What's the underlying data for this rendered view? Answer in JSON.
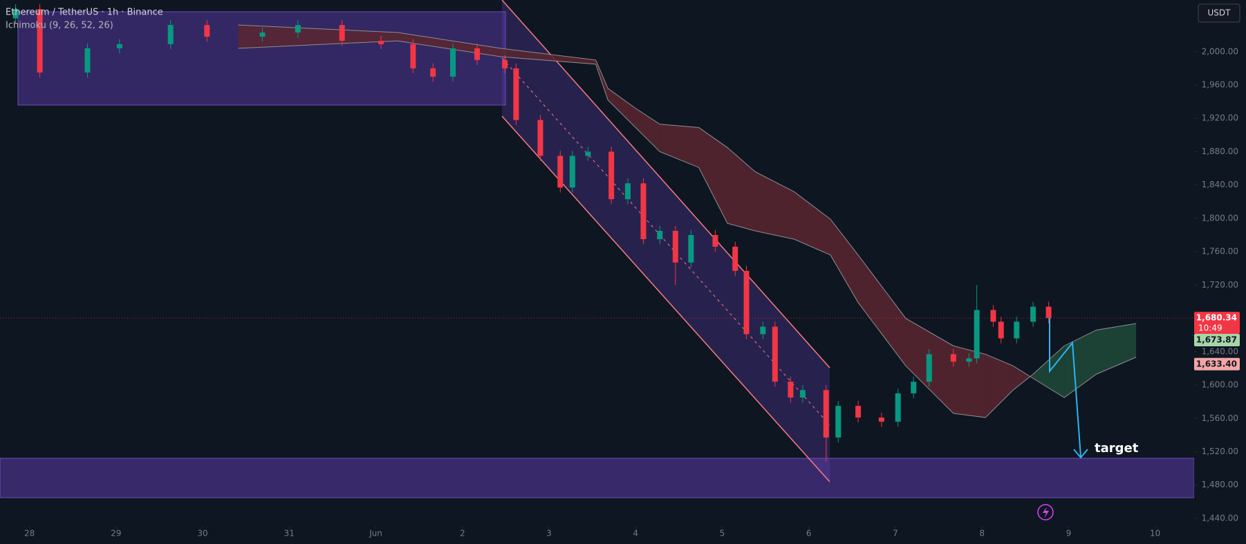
{
  "chart_data": {
    "type": "candlestick",
    "title": "Ethereum / TetherUS · 1h · Binance",
    "indicator": "Ichimoku (9, 26, 52, 26)",
    "currency_button": "USDT",
    "annotation": "target",
    "countdown": "10:49",
    "up_color": "#089981",
    "down_color": "#f23645",
    "x": [
      -0.16,
      0.12,
      0.67,
      1.04,
      1.63,
      2.05,
      2.69,
      3.1,
      3.61,
      4.06,
      4.43,
      4.66,
      4.89,
      5.17,
      5.49,
      5.62,
      5.9,
      6.13,
      6.27,
      6.45,
      6.72,
      6.91,
      7.09,
      7.28,
      7.46,
      7.64,
      7.92,
      8.15,
      8.28,
      8.47,
      8.61,
      8.79,
      8.93,
      9.2,
      9.34,
      9.57,
      9.84,
      10.03,
      10.21,
      10.39,
      10.67,
      10.85,
      10.94,
      11.13,
      11.22,
      11.4,
      11.59,
      11.77
    ],
    "open": [
      2040,
      2051,
      1975,
      2004,
      2009,
      2032,
      2018,
      2023,
      2032,
      2013,
      2009,
      1980,
      1970,
      2004,
      1990,
      1980,
      1918,
      1875,
      1837,
      1875,
      1880,
      1823,
      1842,
      1775,
      1785,
      1747,
      1780,
      1766,
      1737,
      1661,
      1670,
      1604,
      1585,
      1594,
      1537,
      1575,
      1561,
      1556,
      1590,
      1604,
      1637,
      1628,
      1632,
      1690,
      1676,
      1656,
      1676,
      1694
    ],
    "high": [
      2057,
      2057,
      2010,
      2015,
      2038,
      2038,
      2029,
      2038,
      2038,
      2019,
      2015,
      1986,
      2010,
      2010,
      1996,
      1986,
      1924,
      1881,
      1881,
      1886,
      1886,
      1848,
      1848,
      1791,
      1791,
      1786,
      1786,
      1772,
      1743,
      1676,
      1676,
      1610,
      1600,
      1600,
      1581,
      1581,
      1567,
      1596,
      1610,
      1643,
      1643,
      1638,
      1720,
      1696,
      1682,
      1682,
      1700,
      1700
    ],
    "low": [
      2034,
      1969,
      1969,
      1998,
      2003,
      2012,
      2012,
      2017,
      2007,
      2003,
      1974,
      1964,
      1964,
      1984,
      1974,
      1912,
      1869,
      1831,
      1831,
      1869,
      1817,
      1817,
      1769,
      1769,
      1720,
      1741,
      1760,
      1731,
      1655,
      1655,
      1598,
      1579,
      1579,
      1508,
      1531,
      1555,
      1550,
      1550,
      1584,
      1598,
      1622,
      1622,
      1626,
      1670,
      1650,
      1650,
      1670,
      1674
    ],
    "close": [
      2051,
      1975,
      2004,
      2009,
      2032,
      2018,
      2023,
      2032,
      2013,
      2009,
      1980,
      1970,
      2004,
      1990,
      1980,
      1918,
      1875,
      1837,
      1875,
      1880,
      1823,
      1842,
      1775,
      1785,
      1747,
      1780,
      1766,
      1737,
      1661,
      1670,
      1604,
      1585,
      1594,
      1537,
      1575,
      1561,
      1556,
      1590,
      1604,
      1637,
      1628,
      1632,
      1690,
      1676,
      1656,
      1676,
      1694,
      1680.34
    ],
    "cloud": {
      "x": [
        2.41,
        4.25,
        5.44,
        6.54,
        6.68,
        7.0,
        7.28,
        7.73,
        8.06,
        8.38,
        8.83,
        9.25,
        9.57,
        10.12,
        10.67,
        11.04,
        11.36,
        11.59,
        11.95,
        12.32,
        12.78
      ],
      "span_a": [
        2004,
        2013,
        1994,
        1985,
        1942,
        1909,
        1880,
        1861,
        1794,
        1785,
        1775,
        1756,
        1699,
        1623,
        1566,
        1561,
        1594,
        1613,
        1647,
        1666,
        1673.87
      ],
      "span_b": [
        2032,
        2023,
        2004,
        1990,
        1956,
        1932,
        1913,
        1909,
        1885,
        1856,
        1832,
        1799,
        1756,
        1680,
        1647,
        1637,
        1623,
        1608,
        1585,
        1613,
        1633.4
      ],
      "bull_color": "#1e4a3a",
      "bear_color": "#5a2630"
    },
    "price_labels": [
      {
        "value": 1680.34,
        "label": "1,680.34",
        "color": "#f23645"
      },
      {
        "value": 1673.87,
        "label": "1,673.87",
        "color": "#a5d6a7"
      },
      {
        "value": 1633.4,
        "label": "1,633.40",
        "color": "#f4a6a6"
      }
    ],
    "xlim": [
      -0.34,
      13.45
    ],
    "ylim": [
      1430,
      2062
    ],
    "xticks": [
      {
        "value": 0,
        "label": "28"
      },
      {
        "value": 1,
        "label": "29"
      },
      {
        "value": 2,
        "label": "30"
      },
      {
        "value": 3,
        "label": "31"
      },
      {
        "value": 4,
        "label": "Jun"
      },
      {
        "value": 5,
        "label": "2"
      },
      {
        "value": 6,
        "label": "3"
      },
      {
        "value": 7,
        "label": "4"
      },
      {
        "value": 8,
        "label": "5"
      },
      {
        "value": 9,
        "label": "6"
      },
      {
        "value": 10,
        "label": "7"
      },
      {
        "value": 11,
        "label": "8"
      },
      {
        "value": 12,
        "label": "9"
      },
      {
        "value": 13,
        "label": "10"
      }
    ],
    "yticks": [
      {
        "value": 2000,
        "label": "2,000.00"
      },
      {
        "value": 1960,
        "label": "1,960.00"
      },
      {
        "value": 1920,
        "label": "1,920.00"
      },
      {
        "value": 1880,
        "label": "1,880.00"
      },
      {
        "value": 1840,
        "label": "1,840.00"
      },
      {
        "value": 1800,
        "label": "1,800.00"
      },
      {
        "value": 1760,
        "label": "1,760.00"
      },
      {
        "value": 1720,
        "label": "1,720.00"
      },
      {
        "value": 1680,
        "label": "1,680.00"
      },
      {
        "value": 1640,
        "label": "1,640.00"
      },
      {
        "value": 1600,
        "label": "1,600.00"
      },
      {
        "value": 1560,
        "label": "1,560.00"
      },
      {
        "value": 1520,
        "label": "1,520.00"
      },
      {
        "value": 1480,
        "label": "1,480.00"
      },
      {
        "value": 1440,
        "label": "1,440.00"
      }
    ],
    "grid": false
  }
}
